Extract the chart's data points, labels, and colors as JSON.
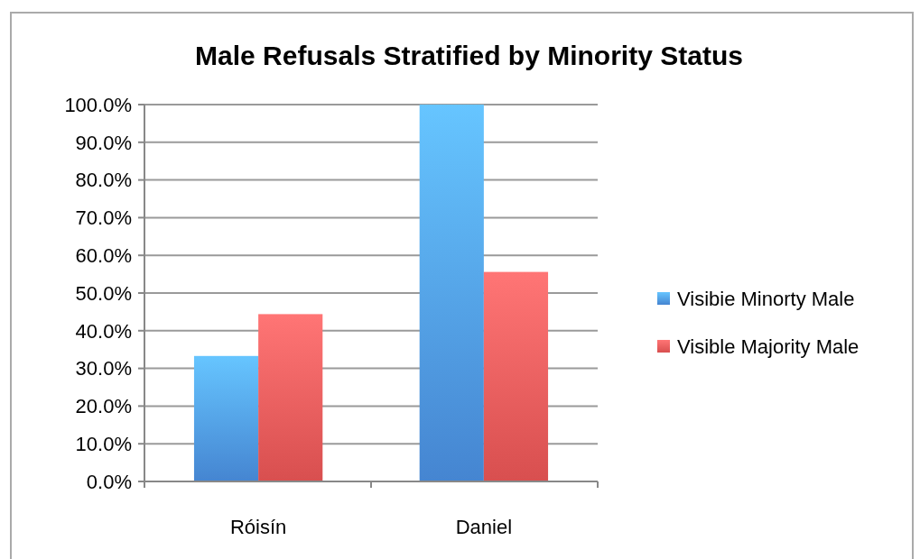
{
  "chart_data": {
    "type": "bar",
    "title": "Male Refusals Stratified by Minority Status",
    "categories": [
      "Róisín",
      "Daniel"
    ],
    "series": [
      {
        "name": "Visibie Minorty Male",
        "color": "#4a8fe0",
        "values": [
          33.3,
          100
        ]
      },
      {
        "name": "Visible Majority Male",
        "color": "#e85555",
        "values": [
          44.4,
          55.6
        ]
      }
    ],
    "ylim": [
      0,
      100
    ],
    "yticks": [
      {
        "value": 0,
        "label": "0.0%"
      },
      {
        "value": 10,
        "label": "10.0%"
      },
      {
        "value": 20,
        "label": "20.0%"
      },
      {
        "value": 30,
        "label": "30.0%"
      },
      {
        "value": 40,
        "label": "40.0%"
      },
      {
        "value": 50,
        "label": "50.0%"
      },
      {
        "value": 60,
        "label": "60.0%"
      },
      {
        "value": 70,
        "label": "70.0%"
      },
      {
        "value": 80,
        "label": "80.0%"
      },
      {
        "value": 90,
        "label": "90.0%"
      },
      {
        "value": 100,
        "label": "100.0%"
      }
    ],
    "grid": "y",
    "legend": "right"
  }
}
